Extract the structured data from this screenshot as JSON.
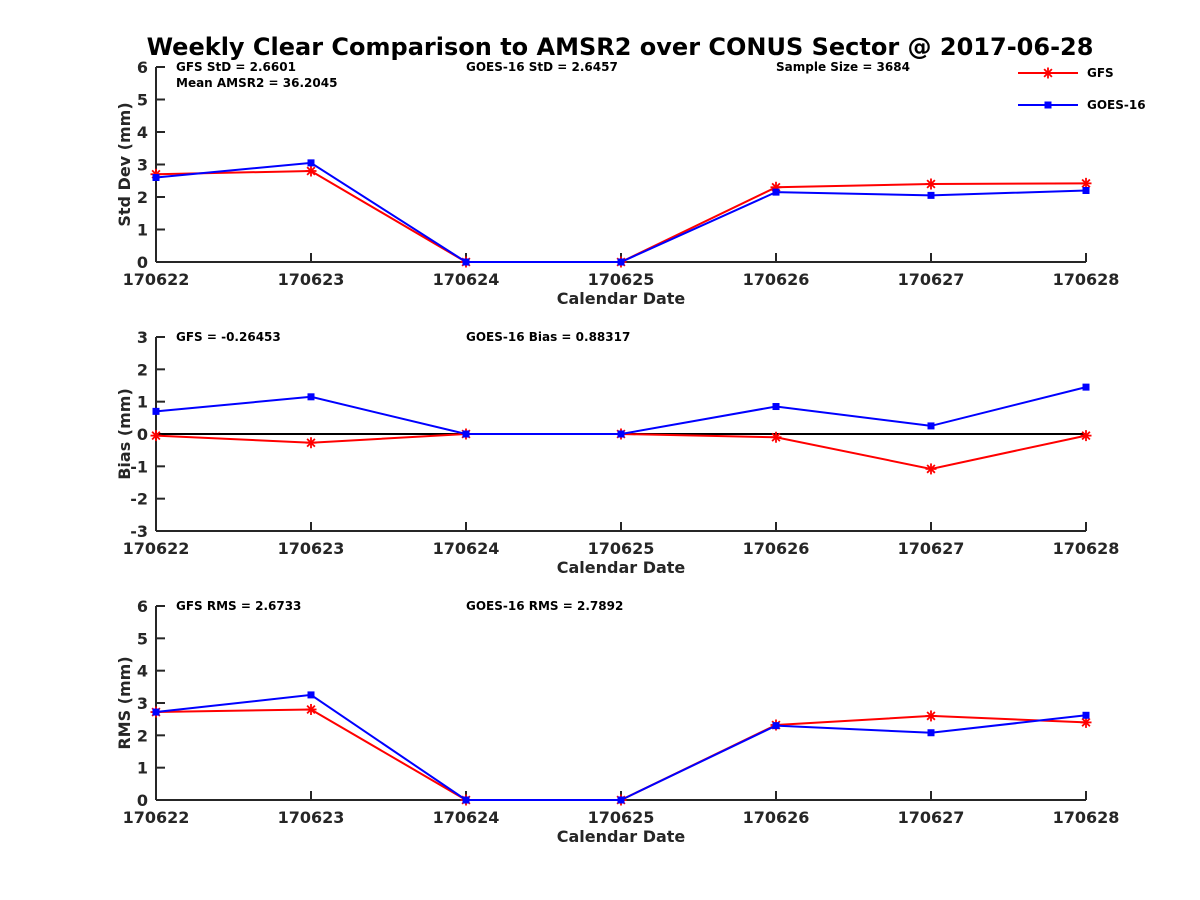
{
  "colors": {
    "gfs": "#ff0000",
    "goes16": "#0000ff",
    "axis": "#262626",
    "zero_line": "#000000",
    "background": "#ffffff"
  },
  "chart_data": {
    "title": "Weekly Clear Comparison to AMSR2 over CONUS Sector @ 2017-06-28",
    "legend": {
      "placement": "top-right",
      "entries": [
        {
          "name": "GFS",
          "color": "#ff0000",
          "marker": "asterisk"
        },
        {
          "name": "GOES-16",
          "color": "#0000ff",
          "marker": "square"
        }
      ]
    },
    "panels": [
      {
        "type": "line",
        "xlabel": "Calendar Date",
        "ylabel": "Std Dev (mm)",
        "categories": [
          "170622",
          "170623",
          "170624",
          "170625",
          "170626",
          "170627",
          "170628"
        ],
        "yticks": [
          "0",
          "1",
          "2",
          "3",
          "4",
          "5",
          "6"
        ],
        "ylim": [
          0,
          6
        ],
        "zero_line": false,
        "annotations": [
          {
            "text": "GFS StD = 2.6601",
            "row": 1
          },
          {
            "text": "Mean AMSR2 = 36.2045",
            "row": 2
          },
          {
            "text": "GOES-16 StD = 2.6457",
            "row": 1
          },
          {
            "text": "Sample Size = 3684",
            "row": 1
          }
        ],
        "series": [
          {
            "name": "GFS",
            "values": [
              2.7,
              2.8,
              0.0,
              0.0,
              2.3,
              2.4,
              2.42
            ]
          },
          {
            "name": "GOES-16",
            "values": [
              2.6,
              3.05,
              0.0,
              0.0,
              2.15,
              2.05,
              2.2
            ]
          }
        ]
      },
      {
        "type": "line",
        "xlabel": "Calendar Date",
        "ylabel": "Bias (mm)",
        "categories": [
          "170622",
          "170623",
          "170624",
          "170625",
          "170626",
          "170627",
          "170628"
        ],
        "yticks": [
          "-3",
          "-2",
          "-1",
          "0",
          "1",
          "2",
          "3"
        ],
        "ylim": [
          -3,
          3
        ],
        "zero_line": true,
        "annotations": [
          {
            "text": "GFS = -0.26453",
            "row": 1
          },
          {
            "text": "GOES-16 Bias  = 0.88317",
            "row": 1
          }
        ],
        "series": [
          {
            "name": "GFS",
            "values": [
              -0.05,
              -0.27,
              0.0,
              0.0,
              -0.1,
              -1.08,
              -0.05
            ]
          },
          {
            "name": "GOES-16",
            "values": [
              0.7,
              1.15,
              0.0,
              0.0,
              0.85,
              0.25,
              1.45
            ]
          }
        ]
      },
      {
        "type": "line",
        "xlabel": "Calendar Date",
        "ylabel": "RMS (mm)",
        "categories": [
          "170622",
          "170623",
          "170624",
          "170625",
          "170626",
          "170627",
          "170628"
        ],
        "yticks": [
          "0",
          "1",
          "2",
          "3",
          "4",
          "5",
          "6"
        ],
        "ylim": [
          0,
          6
        ],
        "zero_line": false,
        "annotations": [
          {
            "text": "GFS RMS = 2.6733",
            "row": 1
          },
          {
            "text": "GOES-16 RMS = 2.7892",
            "row": 1
          }
        ],
        "series": [
          {
            "name": "GFS",
            "values": [
              2.72,
              2.8,
              0.0,
              0.0,
              2.32,
              2.6,
              2.4
            ]
          },
          {
            "name": "GOES-16",
            "values": [
              2.72,
              3.25,
              0.0,
              0.0,
              2.3,
              2.08,
              2.62
            ]
          }
        ]
      }
    ]
  }
}
